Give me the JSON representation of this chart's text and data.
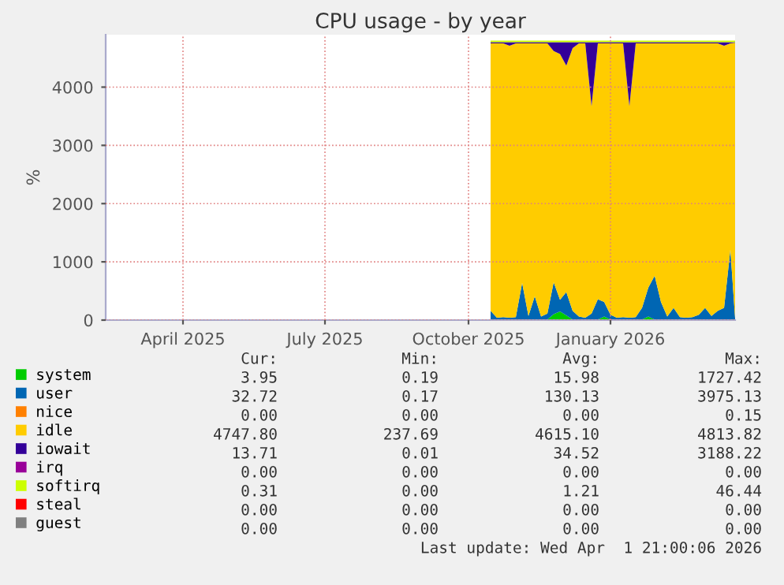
{
  "chart_data": {
    "type": "area",
    "title": "CPU usage - by year",
    "ylabel": "%",
    "stacked": true,
    "grid": true,
    "legend": "bottom",
    "xlim": [
      "2025-02-26",
      "2026-04-01"
    ],
    "ylim": [
      0,
      4900
    ],
    "yticks": [
      0,
      1000,
      2000,
      3000,
      4000
    ],
    "xticks": [
      {
        "value": "2025-04-16",
        "label": "April 2025"
      },
      {
        "value": "2025-07-15",
        "label": "July 2025"
      },
      {
        "value": "2025-10-14",
        "label": "October 2025"
      },
      {
        "value": "2026-01-12",
        "label": "January 2026"
      }
    ],
    "x": [
      "2025-10-28",
      "2025-11-01",
      "2025-11-05",
      "2025-11-09",
      "2025-11-13",
      "2025-11-17",
      "2025-11-21",
      "2025-11-25",
      "2025-11-29",
      "2025-12-03",
      "2025-12-07",
      "2025-12-11",
      "2025-12-15",
      "2025-12-19",
      "2025-12-23",
      "2025-12-27",
      "2025-12-31",
      "2026-01-04",
      "2026-01-08",
      "2026-01-12",
      "2026-01-16",
      "2026-01-20",
      "2026-01-24",
      "2026-01-28",
      "2026-02-01",
      "2026-02-05",
      "2026-02-09",
      "2026-02-13",
      "2026-02-17",
      "2026-02-21",
      "2026-02-25",
      "2026-03-01",
      "2026-03-05",
      "2026-03-09",
      "2026-03-13",
      "2026-03-17",
      "2026-03-21",
      "2026-03-25",
      "2026-03-29",
      "2026-04-01"
    ],
    "series": [
      {
        "name": "system",
        "color": "#00cc00",
        "values": [
          10,
          10,
          10,
          10,
          10,
          10,
          10,
          10,
          10,
          10,
          100,
          150,
          80,
          10,
          10,
          10,
          10,
          10,
          60,
          10,
          10,
          10,
          10,
          10,
          10,
          60,
          10,
          10,
          10,
          10,
          10,
          10,
          10,
          10,
          10,
          10,
          10,
          10,
          10,
          0
        ]
      },
      {
        "name": "user",
        "color": "#0066b3",
        "values": [
          150,
          30,
          40,
          30,
          40,
          630,
          60,
          400,
          50,
          100,
          550,
          200,
          400,
          150,
          50,
          30,
          100,
          350,
          250,
          80,
          30,
          40,
          30,
          40,
          200,
          500,
          750,
          300,
          50,
          200,
          40,
          30,
          40,
          80,
          200,
          60,
          150,
          200,
          1200,
          30
        ]
      },
      {
        "name": "nice",
        "color": "#ff8000",
        "values": [
          null,
          null,
          null,
          null,
          null,
          null,
          null,
          null,
          null,
          null,
          null,
          null,
          null,
          null,
          null,
          null,
          null,
          null,
          null,
          null,
          null,
          null,
          null,
          null,
          null,
          null,
          null,
          null,
          null,
          null,
          null,
          null,
          null,
          null,
          null,
          null,
          null,
          null,
          null,
          null
        ]
      },
      {
        "name": "idle",
        "color": "#ffcc00",
        "values": [
          4590,
          4710,
          4700,
          4670,
          4700,
          4110,
          4680,
          4340,
          4690,
          4640,
          3970,
          4220,
          3890,
          4510,
          4690,
          4710,
          3560,
          4390,
          4440,
          4660,
          4710,
          4700,
          3630,
          4700,
          4540,
          4190,
          3990,
          4440,
          4690,
          4540,
          4700,
          4710,
          4700,
          4660,
          4540,
          4680,
          4590,
          4500,
          3540,
          4730
        ]
      },
      {
        "name": "iowait",
        "color": "#330099",
        "values": [
          20,
          20,
          20,
          60,
          20,
          20,
          20,
          20,
          20,
          20,
          150,
          200,
          400,
          100,
          20,
          20,
          1100,
          20,
          20,
          20,
          20,
          20,
          1100,
          20,
          20,
          20,
          20,
          20,
          20,
          20,
          20,
          20,
          20,
          20,
          20,
          20,
          20,
          60,
          20,
          10
        ]
      },
      {
        "name": "irq",
        "color": "#990099",
        "values": [
          null,
          null,
          null,
          null,
          null,
          null,
          null,
          null,
          null,
          null,
          null,
          null,
          null,
          null,
          null,
          null,
          null,
          null,
          null,
          null,
          null,
          null,
          null,
          null,
          null,
          null,
          null,
          null,
          null,
          null,
          null,
          null,
          null,
          null,
          null,
          null,
          null,
          null,
          null,
          null
        ]
      },
      {
        "name": "softirq",
        "color": "#ccff00",
        "values": [
          30,
          30,
          30,
          30,
          30,
          30,
          30,
          30,
          30,
          30,
          30,
          30,
          30,
          30,
          30,
          30,
          30,
          30,
          30,
          30,
          30,
          30,
          30,
          30,
          30,
          30,
          30,
          30,
          30,
          30,
          30,
          30,
          30,
          30,
          30,
          30,
          30,
          30,
          30,
          30
        ]
      },
      {
        "name": "steal",
        "color": "#ff0000",
        "values": [
          null,
          null,
          null,
          null,
          null,
          null,
          null,
          null,
          null,
          null,
          null,
          null,
          null,
          null,
          null,
          null,
          null,
          null,
          null,
          null,
          null,
          null,
          null,
          null,
          null,
          null,
          null,
          null,
          null,
          null,
          null,
          null,
          null,
          null,
          null,
          null,
          null,
          null,
          null,
          null
        ]
      },
      {
        "name": "guest",
        "color": "#808080",
        "values": [
          null,
          null,
          null,
          null,
          null,
          null,
          null,
          null,
          null,
          null,
          null,
          null,
          null,
          null,
          null,
          null,
          null,
          null,
          null,
          null,
          null,
          null,
          null,
          null,
          null,
          null,
          null,
          null,
          null,
          null,
          null,
          null,
          null,
          null,
          null,
          null,
          null,
          null,
          null,
          null
        ]
      }
    ],
    "annotations": [
      "Cur:",
      "Min:",
      "Avg:",
      "Max:",
      "3.95",
      "0.19",
      "15.98",
      "1727.42",
      "32.72",
      "0.17",
      "130.13",
      "3975.13",
      "0.00",
      "0.00",
      "0.00",
      "0.15",
      "4747.80",
      "237.69",
      "4615.10",
      "4813.82",
      "13.71",
      "0.01",
      "34.52",
      "3188.22",
      "0.00",
      "0.00",
      "0.00",
      "0.00",
      "0.31",
      "0.00",
      "1.21",
      "46.44",
      "0.00",
      "0.00",
      "0.00",
      "0.00",
      "0.00",
      "0.00",
      "0.00",
      "0.00",
      "Last update: Wed Apr  1 21:00:06 2026"
    ]
  }
}
